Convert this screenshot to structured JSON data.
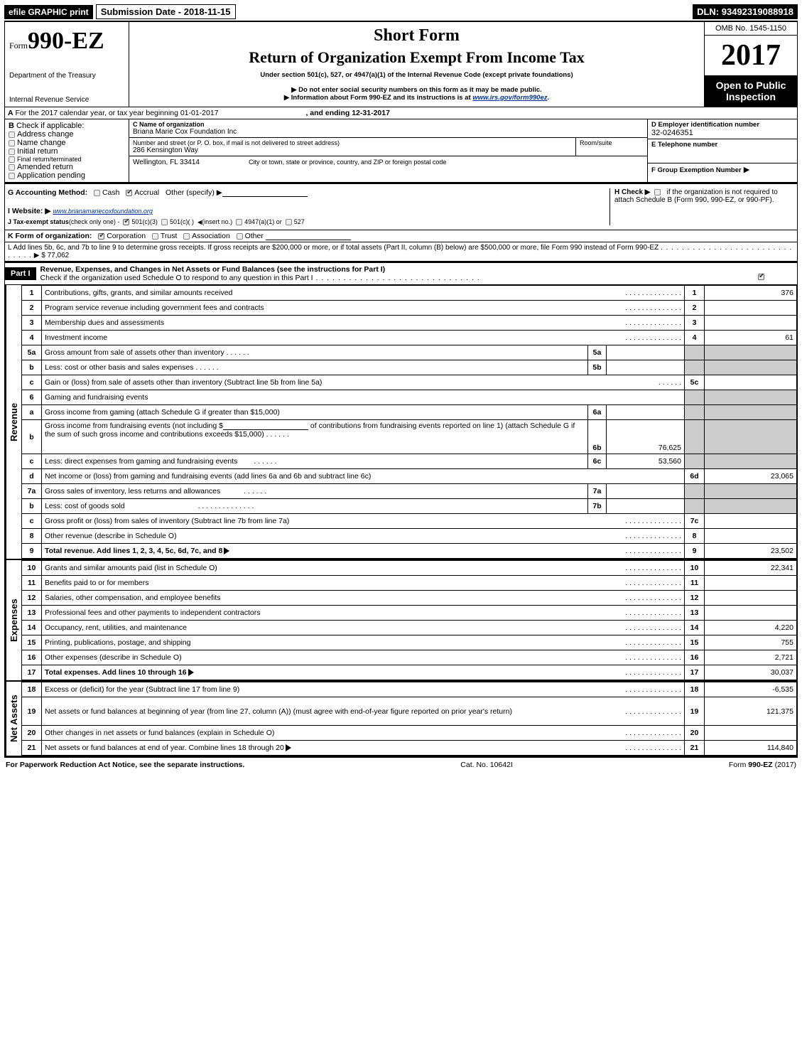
{
  "topbar": {
    "efile": "efile GRAPHIC print",
    "subdate_label": "Submission Date - ",
    "subdate": "2018-11-15",
    "dln_label": "DLN: ",
    "dln": "93492319088918"
  },
  "header": {
    "form_prefix": "Form",
    "form_no": "990-EZ",
    "dept": "Department of the Treasury",
    "irs": "Internal Revenue Service",
    "short_form": "Short Form",
    "title": "Return of Organization Exempt From Income Tax",
    "under": "Under section 501(c), 527, or 4947(a)(1) of the Internal Revenue Code (except private foundations)",
    "noSSN": "▶ Do not enter social security numbers on this form as it may be made public.",
    "info": "▶ Information about Form 990-EZ and its instructions is at ",
    "info_link": "www.irs.gov/form990ez",
    "period": ".",
    "omb": "OMB No. 1545-1150",
    "year": "2017",
    "open": "Open to Public Inspection"
  },
  "A": {
    "line": "For the 2017 calendar year, or tax year beginning 01-01-2017",
    "ending": ", and ending 12-31-2017"
  },
  "B": {
    "label": "Check if applicable:",
    "items": [
      "Address change",
      "Name change",
      "Initial return",
      "Final return/terminated",
      "Amended return",
      "Application pending"
    ]
  },
  "C": {
    "label": "C Name of organization",
    "name": "Briana Marie Cox Foundation Inc",
    "streetlabel": "Number and street (or P. O. box, if mail is not delivered to street address)",
    "street": "286 Kensington Way",
    "room": "Room/suite",
    "citylabel": "City or town, state or province, country, and ZIP or foreign postal code",
    "city": "Wellington, FL  33414"
  },
  "D": {
    "label": "D Employer identification number",
    "value": "32-0246351"
  },
  "E": {
    "label": "E Telephone number",
    "value": ""
  },
  "F": {
    "label": "F Group Exemption Number",
    "arrow": "▶"
  },
  "G": {
    "label": "G Accounting Method:",
    "cash": "Cash",
    "accrual": "Accrual",
    "other": "Other (specify) ▶"
  },
  "H": {
    "label": "H   Check ▶",
    "text": "if the organization is not required to attach Schedule B (Form 990, 990-EZ, or 990-PF)."
  },
  "I": {
    "label": "I Website: ▶",
    "value": "www.brianamariecoxfoundation.org"
  },
  "J": {
    "label": "J Tax-exempt status",
    "detail": "(check only one) -",
    "opts": [
      "501(c)(3)",
      "501(c)( )",
      "(insert no.)",
      "4947(a)(1) or",
      "527"
    ]
  },
  "K": {
    "label": "K Form of organization:",
    "opts": [
      "Corporation",
      "Trust",
      "Association",
      "Other"
    ]
  },
  "L": {
    "text": "L Add lines 5b, 6c, and 7b to line 9 to determine gross receipts. If gross receipts are $200,000 or more, or if total assets (Part II, column (B) below) are $500,000 or more, file Form 990 instead of Form 990-EZ",
    "amount": "▶ $ 77,062"
  },
  "part1": {
    "bar": "Part I",
    "title": "Revenue, Expenses, and Changes in Net Assets or Fund Balances (see the instructions for Part I)",
    "check": "Check if the organization used Schedule O to respond to any question in this Part I"
  },
  "revenue_rows": [
    {
      "n": "1",
      "d": "Contributions, gifts, grants, and similar amounts received",
      "r": "1",
      "a": "376"
    },
    {
      "n": "2",
      "d": "Program service revenue including government fees and contracts",
      "r": "2",
      "a": ""
    },
    {
      "n": "3",
      "d": "Membership dues and assessments",
      "r": "3",
      "a": ""
    },
    {
      "n": "4",
      "d": "Investment income",
      "r": "4",
      "a": "61"
    }
  ],
  "r5": {
    "a": {
      "n": "5a",
      "d": "Gross amount from sale of assets other than inventory",
      "sub": "5a",
      "sv": ""
    },
    "b": {
      "n": "b",
      "d": "Less: cost or other basis and sales expenses",
      "sub": "5b",
      "sv": ""
    },
    "c": {
      "n": "c",
      "d": "Gain or (loss) from sale of assets other than inventory (Subtract line 5b from line 5a)",
      "r": "5c",
      "a": ""
    }
  },
  "r6": {
    "hdr": {
      "n": "6",
      "d": "Gaming and fundraising events"
    },
    "a": {
      "n": "a",
      "d": "Gross income from gaming (attach Schedule G if greater than $15,000)",
      "sub": "6a",
      "sv": ""
    },
    "b": {
      "n": "b",
      "d": "Gross income from fundraising events (not including $",
      "d2": "of contributions from fundraising events reported on line 1) (attach Schedule G if the sum of such gross income and contributions exceeds $15,000)",
      "sub": "6b",
      "sv": "76,625"
    },
    "c": {
      "n": "c",
      "d": "Less: direct expenses from gaming and fundraising events",
      "sub": "6c",
      "sv": "53,560"
    },
    "d": {
      "n": "d",
      "d": "Net income or (loss) from gaming and fundraising events (add lines 6a and 6b and subtract line 6c)",
      "r": "6d",
      "a": "23,065"
    }
  },
  "r7": {
    "a": {
      "n": "7a",
      "d": "Gross sales of inventory, less returns and allowances",
      "sub": "7a",
      "sv": ""
    },
    "b": {
      "n": "b",
      "d": "Less: cost of goods sold",
      "sub": "7b",
      "sv": ""
    },
    "c": {
      "n": "c",
      "d": "Gross profit or (loss) from sales of inventory (Subtract line 7b from line 7a)",
      "r": "7c",
      "a": ""
    }
  },
  "revenue_tail": [
    {
      "n": "8",
      "d": "Other revenue (describe in Schedule O)",
      "r": "8",
      "a": ""
    },
    {
      "n": "9",
      "d": "Total revenue. Add lines 1, 2, 3, 4, 5c, 6d, 7c, and 8",
      "r": "9",
      "a": "23,502",
      "arrow": true,
      "bold": true
    }
  ],
  "expense_rows": [
    {
      "n": "10",
      "d": "Grants and similar amounts paid (list in Schedule O)",
      "r": "10",
      "a": "22,341"
    },
    {
      "n": "11",
      "d": "Benefits paid to or for members",
      "r": "11",
      "a": ""
    },
    {
      "n": "12",
      "d": "Salaries, other compensation, and employee benefits",
      "r": "12",
      "a": ""
    },
    {
      "n": "13",
      "d": "Professional fees and other payments to independent contractors",
      "r": "13",
      "a": ""
    },
    {
      "n": "14",
      "d": "Occupancy, rent, utilities, and maintenance",
      "r": "14",
      "a": "4,220"
    },
    {
      "n": "15",
      "d": "Printing, publications, postage, and shipping",
      "r": "15",
      "a": "755"
    },
    {
      "n": "16",
      "d": "Other expenses (describe in Schedule O)",
      "r": "16",
      "a": "2,721"
    },
    {
      "n": "17",
      "d": "Total expenses. Add lines 10 through 16",
      "r": "17",
      "a": "30,037",
      "arrow": true,
      "bold": true
    }
  ],
  "net_rows": [
    {
      "n": "18",
      "d": "Excess or (deficit) for the year (Subtract line 17 from line 9)",
      "r": "18",
      "a": "-6,535"
    },
    {
      "n": "19",
      "d": "Net assets or fund balances at beginning of year (from line 27, column (A)) (must agree with end-of-year figure reported on prior year's return)",
      "r": "19",
      "a": "121,375",
      "tall": true
    },
    {
      "n": "20",
      "d": "Other changes in net assets or fund balances (explain in Schedule O)",
      "r": "20",
      "a": ""
    },
    {
      "n": "21",
      "d": "Net assets or fund balances at end of year. Combine lines 18 through 20",
      "r": "21",
      "a": "114,840",
      "arrow": true
    }
  ],
  "sections": {
    "rev": "Revenue",
    "exp": "Expenses",
    "na": "Net Assets"
  },
  "footer": {
    "left": "For Paperwork Reduction Act Notice, see the separate instructions.",
    "mid": "Cat. No. 10642I",
    "right": "Form 990-EZ (2017)"
  }
}
